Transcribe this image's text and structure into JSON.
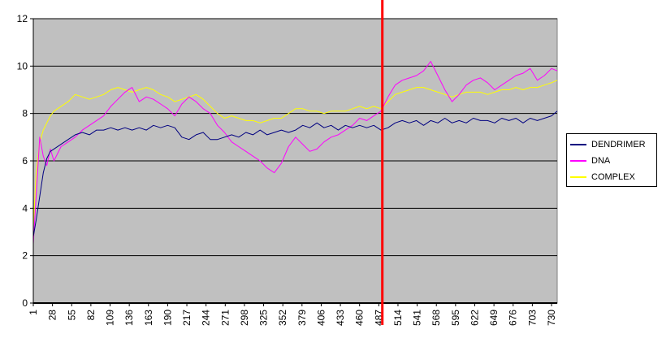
{
  "chart_data": {
    "type": "line",
    "title": "",
    "xlabel": "",
    "ylabel": "",
    "ylim": [
      0,
      12
    ],
    "yticks": [
      "0",
      "2",
      "4",
      "6",
      "8",
      "10",
      "12"
    ],
    "xlim": [
      1,
      738
    ],
    "xticks": [
      "1",
      "28",
      "55",
      "82",
      "109",
      "136",
      "163",
      "190",
      "217",
      "244",
      "271",
      "298",
      "325",
      "352",
      "379",
      "406",
      "433",
      "460",
      "487",
      "514",
      "541",
      "568",
      "595",
      "622",
      "649",
      "676",
      "703",
      "730"
    ],
    "grid": true,
    "plot_background": "#c0c0c0",
    "legend_position": "right",
    "vertical_marker": {
      "x": 492,
      "color": "#ff0000"
    },
    "series": [
      {
        "name": "DENDRIMER",
        "color": "#000080",
        "x": [
          1,
          5,
          10,
          15,
          20,
          25,
          30,
          40,
          50,
          60,
          70,
          80,
          90,
          100,
          110,
          120,
          130,
          140,
          150,
          160,
          170,
          180,
          190,
          200,
          210,
          220,
          230,
          240,
          250,
          260,
          270,
          280,
          290,
          300,
          310,
          320,
          330,
          340,
          350,
          360,
          370,
          380,
          390,
          400,
          410,
          420,
          430,
          440,
          450,
          460,
          470,
          480,
          490,
          500,
          510,
          520,
          530,
          540,
          550,
          560,
          570,
          580,
          590,
          600,
          610,
          620,
          630,
          640,
          650,
          660,
          670,
          680,
          690,
          700,
          710,
          720,
          730,
          738
        ],
        "y": [
          2.8,
          3.5,
          4.5,
          5.5,
          6.1,
          6.4,
          6.5,
          6.7,
          6.9,
          7.1,
          7.2,
          7.1,
          7.3,
          7.3,
          7.4,
          7.3,
          7.4,
          7.3,
          7.4,
          7.3,
          7.5,
          7.4,
          7.5,
          7.4,
          7.0,
          6.9,
          7.1,
          7.2,
          6.9,
          6.9,
          7.0,
          7.1,
          7.0,
          7.2,
          7.1,
          7.3,
          7.1,
          7.2,
          7.3,
          7.2,
          7.3,
          7.5,
          7.4,
          7.6,
          7.4,
          7.5,
          7.3,
          7.5,
          7.4,
          7.5,
          7.4,
          7.5,
          7.3,
          7.4,
          7.6,
          7.7,
          7.6,
          7.7,
          7.5,
          7.7,
          7.6,
          7.8,
          7.6,
          7.7,
          7.6,
          7.8,
          7.7,
          7.7,
          7.6,
          7.8,
          7.7,
          7.8,
          7.6,
          7.8,
          7.7,
          7.8,
          7.9,
          8.1
        ]
      },
      {
        "name": "DNA",
        "color": "#ff00ff",
        "x": [
          1,
          5,
          10,
          15,
          20,
          25,
          30,
          40,
          50,
          60,
          70,
          80,
          90,
          100,
          110,
          120,
          130,
          140,
          150,
          160,
          170,
          180,
          190,
          200,
          210,
          220,
          230,
          240,
          250,
          260,
          270,
          280,
          290,
          300,
          310,
          320,
          330,
          340,
          350,
          360,
          370,
          380,
          390,
          400,
          410,
          420,
          430,
          440,
          450,
          460,
          470,
          480,
          490,
          500,
          510,
          520,
          530,
          540,
          550,
          560,
          570,
          580,
          590,
          600,
          610,
          620,
          630,
          640,
          650,
          660,
          670,
          680,
          690,
          700,
          710,
          720,
          730,
          738
        ],
        "y": [
          2.5,
          4.5,
          7.0,
          6.2,
          5.8,
          6.5,
          6.0,
          6.6,
          6.8,
          7.0,
          7.3,
          7.5,
          7.7,
          7.9,
          8.3,
          8.6,
          8.9,
          9.1,
          8.5,
          8.7,
          8.6,
          8.4,
          8.2,
          7.9,
          8.4,
          8.7,
          8.5,
          8.2,
          8.0,
          7.5,
          7.2,
          6.8,
          6.6,
          6.4,
          6.2,
          6.0,
          5.7,
          5.5,
          5.9,
          6.6,
          7.0,
          6.7,
          6.4,
          6.5,
          6.8,
          7.0,
          7.1,
          7.3,
          7.5,
          7.8,
          7.7,
          7.9,
          8.1,
          8.7,
          9.2,
          9.4,
          9.5,
          9.6,
          9.8,
          10.2,
          9.6,
          9.0,
          8.5,
          8.8,
          9.2,
          9.4,
          9.5,
          9.3,
          9.0,
          9.2,
          9.4,
          9.6,
          9.7,
          9.9,
          9.4,
          9.6,
          9.9,
          9.8
        ]
      },
      {
        "name": "COMPLEX",
        "color": "#ffff00",
        "x": [
          1,
          5,
          10,
          15,
          20,
          25,
          30,
          40,
          50,
          60,
          70,
          80,
          90,
          100,
          110,
          120,
          130,
          140,
          150,
          160,
          170,
          180,
          190,
          200,
          210,
          220,
          230,
          240,
          250,
          260,
          270,
          280,
          290,
          300,
          310,
          320,
          330,
          340,
          350,
          360,
          370,
          380,
          390,
          400,
          410,
          420,
          430,
          440,
          450,
          460,
          470,
          480,
          490,
          500,
          510,
          520,
          530,
          540,
          550,
          560,
          570,
          580,
          590,
          600,
          610,
          620,
          630,
          640,
          650,
          660,
          670,
          680,
          690,
          700,
          710,
          720,
          730,
          738
        ],
        "y": [
          3.2,
          5.5,
          6.8,
          7.3,
          7.6,
          7.9,
          8.1,
          8.3,
          8.5,
          8.8,
          8.7,
          8.6,
          8.7,
          8.8,
          9.0,
          9.1,
          9.0,
          8.9,
          9.0,
          9.1,
          9.0,
          8.8,
          8.7,
          8.5,
          8.6,
          8.7,
          8.8,
          8.6,
          8.3,
          8.0,
          7.8,
          7.9,
          7.8,
          7.7,
          7.7,
          7.6,
          7.7,
          7.8,
          7.8,
          8.0,
          8.2,
          8.2,
          8.1,
          8.1,
          8.0,
          8.1,
          8.1,
          8.1,
          8.2,
          8.3,
          8.2,
          8.3,
          8.2,
          8.5,
          8.8,
          8.9,
          9.0,
          9.1,
          9.1,
          9.0,
          8.9,
          8.8,
          8.7,
          8.8,
          8.9,
          8.9,
          8.9,
          8.8,
          8.9,
          9.0,
          9.0,
          9.1,
          9.0,
          9.1,
          9.1,
          9.2,
          9.3,
          9.4
        ]
      }
    ]
  }
}
